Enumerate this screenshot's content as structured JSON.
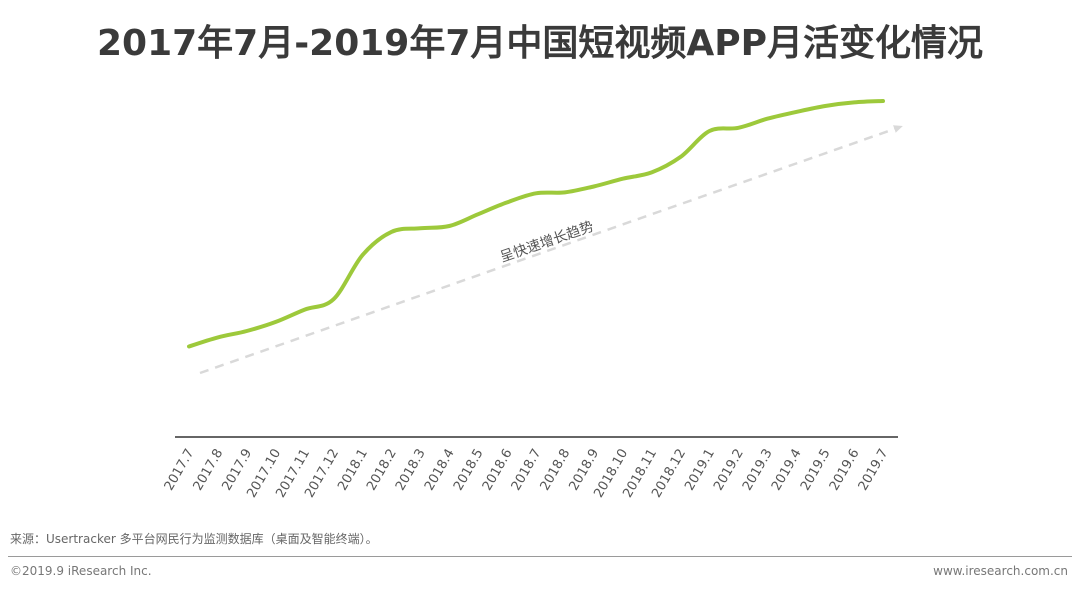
{
  "chart_data": {
    "type": "line",
    "title": "2017年7月-2019年7月中国短视频APP月活变化情况",
    "xlabel": "",
    "ylabel": "",
    "grid": false,
    "categories": [
      "2017.7",
      "2017.8",
      "2017.9",
      "2017.10",
      "2017.11",
      "2017.12",
      "2018.1",
      "2018.2",
      "2018.3",
      "2018.4",
      "2018.5",
      "2018.6",
      "2018.7",
      "2018.8",
      "2018.9",
      "2018.10",
      "2018.11",
      "2018.12",
      "2019.1",
      "2019.2",
      "2019.3",
      "2019.4",
      "2019.5",
      "2019.6",
      "2019.7"
    ],
    "series": [
      {
        "name": "短视频APP月活",
        "color": "#9dc93b",
        "values": [
          10,
          30,
          44,
          64,
          91,
          114,
          211,
          262,
          270,
          275,
          301,
          327,
          347,
          349,
          362,
          379,
          393,
          427,
          484,
          491,
          511,
          526,
          539,
          547,
          550
        ]
      }
    ],
    "trend_annotation": "呈快速增长趋势",
    "trend_color": "#d9d9d9"
  },
  "footer": {
    "source": "来源：Usertracker 多平台网民行为监测数据库（桌面及智能终端）。",
    "copyright": "©2019.9 iResearch Inc.",
    "website": "www.iresearch.com.cn"
  }
}
